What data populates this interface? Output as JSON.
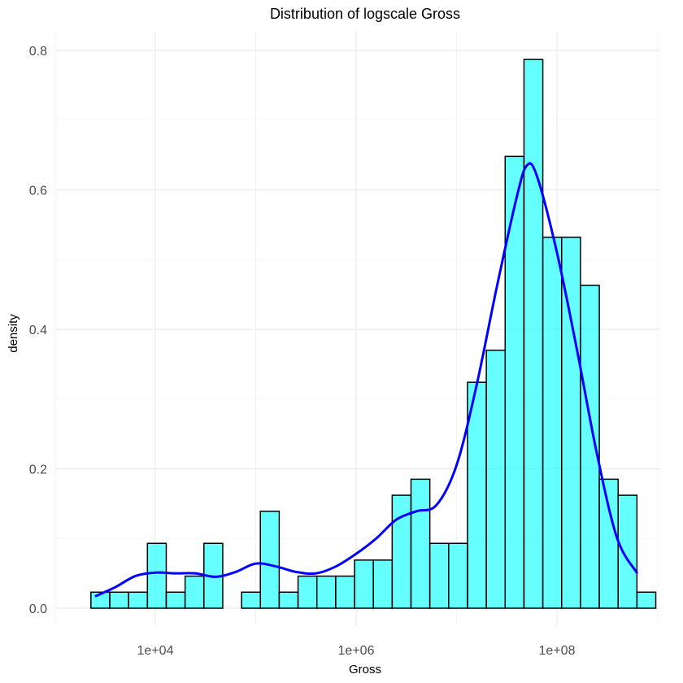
{
  "chart_data": {
    "type": "bar",
    "title": "Distribution of logscale Gross",
    "xlabel": "Gross",
    "ylabel": "density",
    "x_scale": "log10",
    "xlim": [
      30000,
      800000000
    ],
    "ylim": [
      0,
      0.8
    ],
    "x_ticks": [
      10000,
      1000000,
      100000000
    ],
    "x_tick_labels": [
      "1e+04",
      "1e+06",
      "1e+08"
    ],
    "y_ticks": [
      0.0,
      0.2,
      0.4,
      0.6,
      0.8
    ],
    "y_tick_labels": [
      "0.0",
      "0.2",
      "0.4",
      "0.6",
      "0.8"
    ],
    "grid": true,
    "series": [
      {
        "kind": "histogram",
        "bin_width_log10": 0.1875,
        "bin_start_log10": 3.359,
        "fill_color": "#00ffff",
        "outline_color": "#000000",
        "densities": [
          0.023,
          0.023,
          0.023,
          0.093,
          0.023,
          0.046,
          0.093,
          0.0,
          0.023,
          0.139,
          0.023,
          0.046,
          0.046,
          0.046,
          0.069,
          0.069,
          0.162,
          0.185,
          0.093,
          0.093,
          0.324,
          0.37,
          0.648,
          0.787,
          0.532,
          0.532,
          0.463,
          0.185,
          0.162,
          0.023
        ]
      },
      {
        "kind": "density",
        "color": "#0000ff",
        "points": [
          [
            3.4,
            0.017
          ],
          [
            3.6,
            0.03
          ],
          [
            3.8,
            0.046
          ],
          [
            4.0,
            0.051
          ],
          [
            4.2,
            0.05
          ],
          [
            4.4,
            0.05
          ],
          [
            4.6,
            0.045
          ],
          [
            4.8,
            0.052
          ],
          [
            5.0,
            0.064
          ],
          [
            5.2,
            0.06
          ],
          [
            5.4,
            0.052
          ],
          [
            5.6,
            0.05
          ],
          [
            5.8,
            0.06
          ],
          [
            6.0,
            0.078
          ],
          [
            6.2,
            0.1
          ],
          [
            6.4,
            0.127
          ],
          [
            6.6,
            0.139
          ],
          [
            6.8,
            0.148
          ],
          [
            7.0,
            0.205
          ],
          [
            7.2,
            0.32
          ],
          [
            7.4,
            0.46
          ],
          [
            7.6,
            0.59
          ],
          [
            7.7,
            0.635
          ],
          [
            7.8,
            0.62
          ],
          [
            8.0,
            0.51
          ],
          [
            8.2,
            0.37
          ],
          [
            8.4,
            0.22
          ],
          [
            8.6,
            0.1
          ],
          [
            8.8,
            0.05
          ]
        ]
      }
    ]
  }
}
